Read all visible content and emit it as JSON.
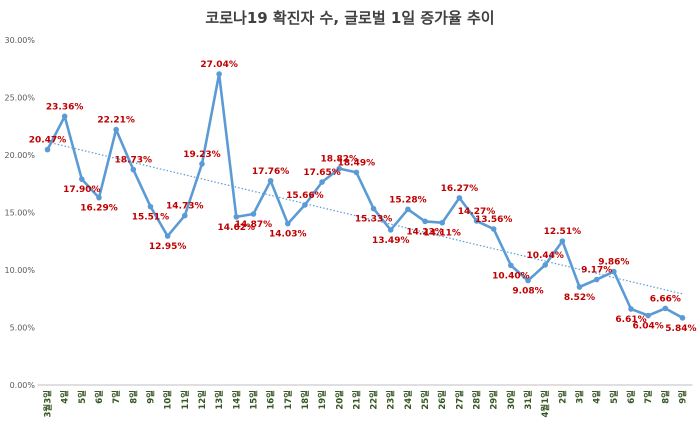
{
  "chart_data": {
    "type": "line",
    "title": "코로나19 확진자 수, 글로벌 1일 증가율 추이",
    "xlabel": "",
    "ylabel": "",
    "ylim": [
      0,
      30
    ],
    "yticks": [
      "0.00%",
      "5.00%",
      "10.00%",
      "15.00%",
      "20.00%",
      "25.00%",
      "30.00%"
    ],
    "grid": false,
    "trendline": "linear",
    "categories": [
      "3월3일",
      "4일",
      "5일",
      "6일",
      "7일",
      "8일",
      "9일",
      "10일",
      "11일",
      "12일",
      "13일",
      "14일",
      "15일",
      "16일",
      "17일",
      "18일",
      "19일",
      "20일",
      "21일",
      "22일",
      "23일",
      "24일",
      "25일",
      "26일",
      "27일",
      "28일",
      "29일",
      "30일",
      "31일",
      "4월1일",
      "2일",
      "3일",
      "4일",
      "5일",
      "6일",
      "7일",
      "8일",
      "9일"
    ],
    "values": [
      20.47,
      23.36,
      17.9,
      16.29,
      22.21,
      18.73,
      15.51,
      12.95,
      14.73,
      19.23,
      27.04,
      14.62,
      14.87,
      17.76,
      14.03,
      15.66,
      17.65,
      18.82,
      18.49,
      15.33,
      13.49,
      15.28,
      14.23,
      14.11,
      16.27,
      14.27,
      13.56,
      10.4,
      9.08,
      10.44,
      12.51,
      8.52,
      9.17,
      9.86,
      6.61,
      6.04,
      6.66,
      5.84
    ],
    "labels": [
      "20.47%",
      "23.36%",
      "17.90%",
      "16.29%",
      "22.21%",
      "18.73%",
      "15.51%",
      "12.95%",
      "14.73%",
      "19.23%",
      "27.04%",
      "14.62%",
      "14.87%",
      "17.76%",
      "14.03%",
      "15.66%",
      "17.65%",
      "18.82%",
      "18.49%",
      "15.33%",
      "13.49%",
      "15.28%",
      "14.23%",
      "14.11%",
      "16.27%",
      "14.27%",
      "13.56%",
      "10.40%",
      "9.08%",
      "10.44%",
      "12.51%",
      "8.52%",
      "9.17%",
      "9.86%",
      "6.61%",
      "6.04%",
      "6.66%",
      "5.84%"
    ],
    "colors": {
      "line": "#5b9bd5",
      "labels": "#c00000",
      "trend": "#5b9bd5",
      "xticks": "#375623"
    }
  }
}
